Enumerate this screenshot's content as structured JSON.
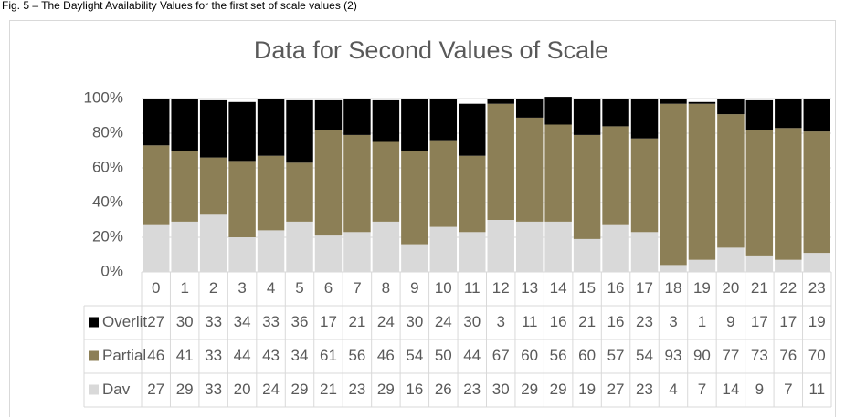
{
  "caption": "Fig. 5 – The Daylight Availability Values for the first set of scale values (2)",
  "chart_data": {
    "type": "bar",
    "stacked": true,
    "title": "Data for Second Values of Scale",
    "categories": [
      "0",
      "1",
      "2",
      "3",
      "4",
      "5",
      "6",
      "7",
      "8",
      "9",
      "10",
      "11",
      "12",
      "13",
      "14",
      "15",
      "16",
      "17",
      "18",
      "19",
      "20",
      "21",
      "22",
      "23"
    ],
    "series": [
      {
        "name": "Dav",
        "color": "#d9d9d9",
        "values": [
          27,
          29,
          33,
          20,
          24,
          29,
          21,
          23,
          29,
          16,
          26,
          23,
          30,
          29,
          29,
          19,
          27,
          23,
          4,
          7,
          14,
          9,
          7,
          11
        ]
      },
      {
        "name": "Partial",
        "color": "#8c7f56",
        "values": [
          46,
          41,
          33,
          44,
          43,
          34,
          61,
          56,
          46,
          54,
          50,
          44,
          67,
          60,
          56,
          60,
          57,
          54,
          93,
          90,
          77,
          73,
          76,
          70
        ]
      },
      {
        "name": "Overlit",
        "color": "#000000",
        "values": [
          27,
          30,
          33,
          34,
          33,
          36,
          17,
          21,
          24,
          30,
          24,
          30,
          3,
          11,
          16,
          21,
          16,
          23,
          3,
          1,
          9,
          17,
          17,
          19
        ]
      }
    ],
    "ylim": [
      0,
      100
    ],
    "yticks": [
      {
        "value": 0,
        "label": "0%"
      },
      {
        "value": 20,
        "label": "20%"
      },
      {
        "value": 40,
        "label": "40%"
      },
      {
        "value": 60,
        "label": "60%"
      },
      {
        "value": 80,
        "label": "80%"
      },
      {
        "value": 100,
        "label": "100%"
      }
    ],
    "grid": true,
    "data_table": true
  }
}
